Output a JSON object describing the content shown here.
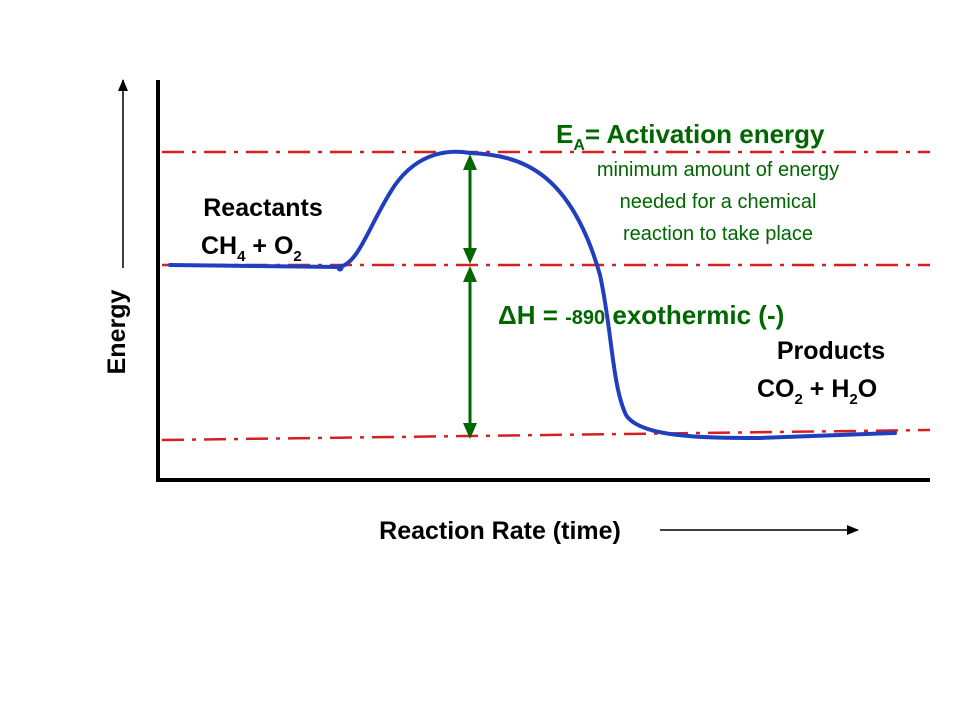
{
  "axes": {
    "y_label": "Energy",
    "x_label": "Reaction Rate (time)"
  },
  "reactants": {
    "title": "Reactants",
    "formula": {
      "p1": "CH",
      "s1": "4",
      "p2": " + O",
      "s2": "2"
    }
  },
  "products": {
    "title": "Products",
    "formula": {
      "p1": "CO",
      "s1": "2",
      "p2": " + H",
      "s2": "2",
      "p3": "O"
    }
  },
  "activation": {
    "symbol": "E",
    "subscript": "A",
    "title": "= Activation energy",
    "desc": [
      "minimum amount of energy",
      "needed for a chemical",
      "reaction to take place"
    ]
  },
  "enthalpy": {
    "prefix": "ΔH = ",
    "value": "-890",
    "suffix": " exothermic (-)"
  },
  "colors": {
    "curve": "#1f3fbf",
    "reference_lines": "#d42020",
    "arrows": "#006600",
    "text_green": "#006600",
    "axes": "#000000"
  }
}
